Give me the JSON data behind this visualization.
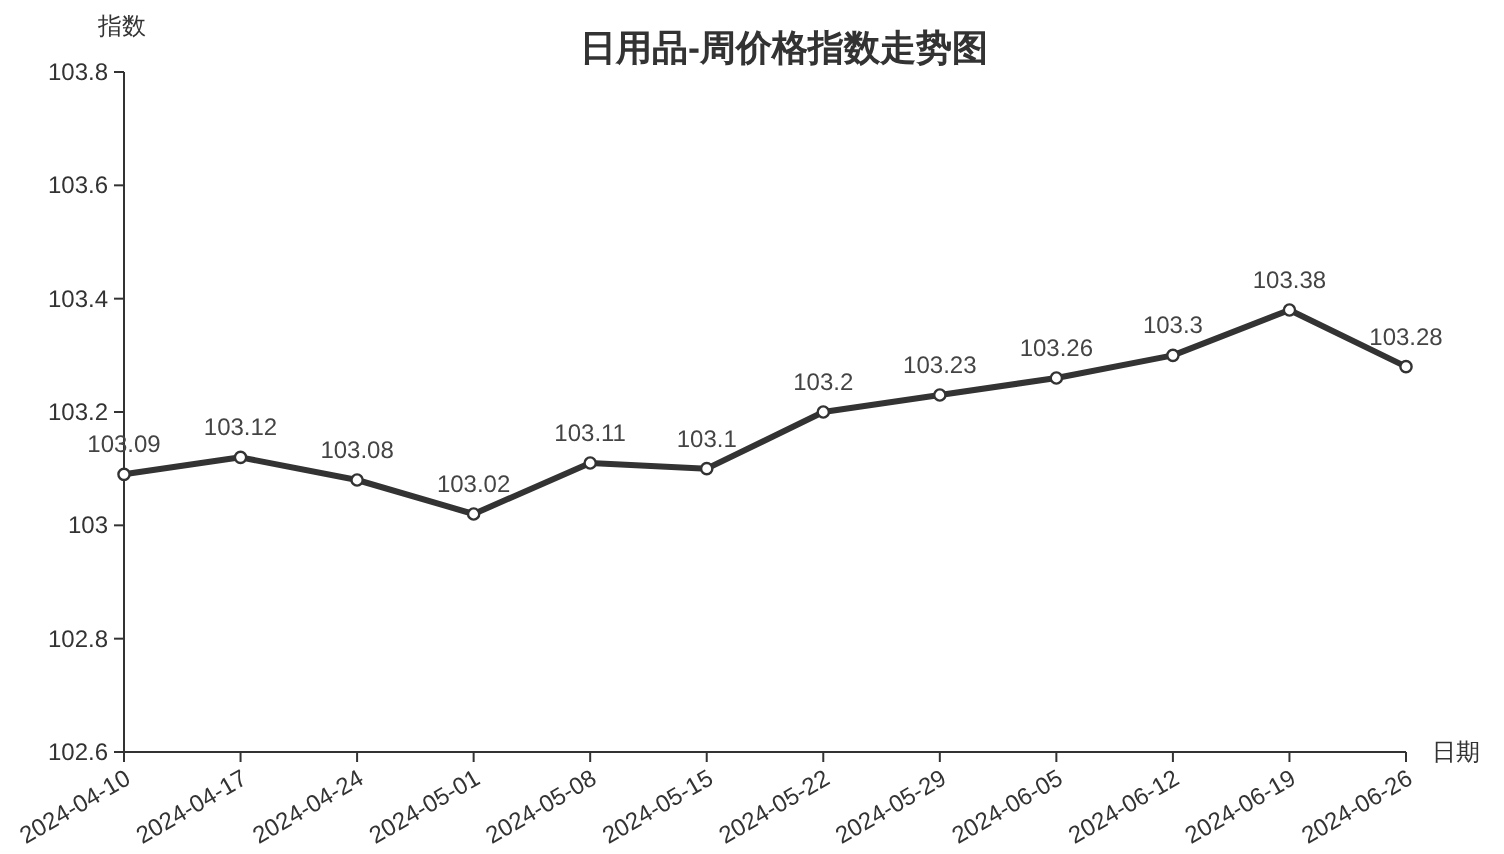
{
  "chart_data": {
    "type": "line",
    "title": "日用品-周价格指数走势图",
    "ylabel": "指数",
    "xlabel": "日期",
    "categories": [
      "2024-04-10",
      "2024-04-17",
      "2024-04-24",
      "2024-05-01",
      "2024-05-08",
      "2024-05-15",
      "2024-05-22",
      "2024-05-29",
      "2024-06-05",
      "2024-06-12",
      "2024-06-19",
      "2024-06-26"
    ],
    "series": [
      {
        "color": "#333333",
        "values": [
          103.09,
          103.12,
          103.08,
          103.02,
          103.11,
          103.1,
          103.2,
          103.23,
          103.26,
          103.3,
          103.38,
          103.28
        ]
      }
    ],
    "ylim": [
      102.6,
      103.8
    ],
    "yticks": [
      102.6,
      102.8,
      103,
      103.2,
      103.4,
      103.6,
      103.8
    ],
    "data_labels": true,
    "marker": "circle",
    "line_style": "solid",
    "grid": false
  }
}
